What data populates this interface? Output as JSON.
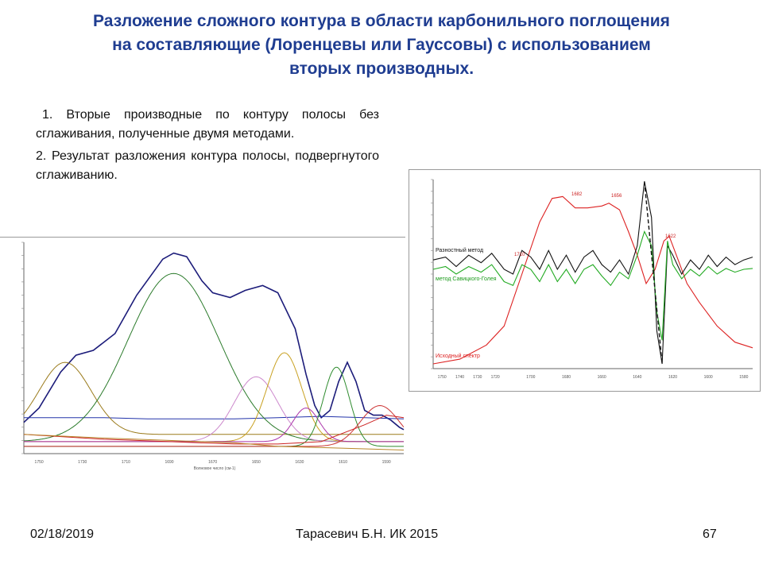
{
  "title": {
    "line1": "Разложение сложного контура в области карбонильного поглощения",
    "line2": "на составляющие  (Лоренцевы или Гауссовы) с использованием",
    "line3": "вторых производных."
  },
  "bullets": [
    "1. Вторые производные по контуру полосы без сглаживания, полученные двумя методами.",
    "2. Результат разложения контура полосы, подвергнутого сглаживанию."
  ],
  "footer": {
    "date": "02/18/2019",
    "author": "Тарасевич Б.Н.  ИК 2015",
    "page": "67"
  },
  "chart_data": [
    {
      "type": "line",
      "description_id": "deconvolution",
      "x_ticks": [
        "1750",
        "1730",
        "1710",
        "1690",
        "1670",
        "1650",
        "1630",
        "1610",
        "1590"
      ],
      "xlabel": "Волновое число (см-1)",
      "xlim": [
        1757,
        1582
      ],
      "ylim": [
        -0.1,
        0.78
      ],
      "colors": {
        "envelope": "#1c1c7a",
        "baseline": "#2233aa",
        "c1733": "#9a7a1a",
        "c1680": "#2a7a2a",
        "c1650": "#cc88cc",
        "c1641": "#c8a020",
        "c1628": "#aa33aa",
        "c1612": "#2e8b2e",
        "c1600": "#cc3333",
        "b1": "#cc2222",
        "b2": "#b8862b"
      },
      "series": [
        {
          "key": "envelope",
          "points": [
            [
              1757,
              0.03
            ],
            [
              1750,
              0.09
            ],
            [
              1740,
              0.24
            ],
            [
              1733,
              0.31
            ],
            [
              1725,
              0.33
            ],
            [
              1715,
              0.4
            ],
            [
              1705,
              0.56
            ],
            [
              1693,
              0.71
            ],
            [
              1688,
              0.735
            ],
            [
              1682,
              0.72
            ],
            [
              1675,
              0.62
            ],
            [
              1670,
              0.57
            ],
            [
              1662,
              0.55
            ],
            [
              1655,
              0.58
            ],
            [
              1647,
              0.6
            ],
            [
              1640,
              0.57
            ],
            [
              1632,
              0.42
            ],
            [
              1627,
              0.23
            ],
            [
              1623,
              0.1
            ],
            [
              1620,
              0.05
            ],
            [
              1616,
              0.08
            ],
            [
              1612,
              0.2
            ],
            [
              1608,
              0.28
            ],
            [
              1604,
              0.2
            ],
            [
              1600,
              0.08
            ],
            [
              1596,
              0.06
            ],
            [
              1592,
              0.06
            ],
            [
              1588,
              0.04
            ],
            [
              1584,
              0.01
            ],
            [
              1582,
              0.0
            ]
          ]
        },
        {
          "key": "baseline",
          "points": [
            [
              1757,
              0.05
            ],
            [
              1720,
              0.05
            ],
            [
              1700,
              0.045
            ],
            [
              1680,
              0.045
            ],
            [
              1660,
              0.045
            ],
            [
              1640,
              0.05
            ],
            [
              1620,
              0.055
            ],
            [
              1600,
              0.05
            ],
            [
              1582,
              0.045
            ]
          ]
        },
        {
          "key": "c1733",
          "peak": 1738,
          "height": 0.3,
          "width": 12,
          "base": -0.02
        },
        {
          "key": "c1680",
          "peak": 1688,
          "height": 0.7,
          "width": 21,
          "base": -0.05
        },
        {
          "key": "c1650",
          "peak": 1650,
          "height": 0.27,
          "width": 10,
          "base": -0.05
        },
        {
          "key": "c1641",
          "peak": 1637,
          "height": 0.37,
          "width": 8,
          "base": -0.05
        },
        {
          "key": "c1628",
          "peak": 1627,
          "height": 0.14,
          "width": 6,
          "base": -0.05
        },
        {
          "key": "c1612",
          "peak": 1613,
          "height": 0.33,
          "width": 6,
          "base": -0.07
        },
        {
          "key": "c1600",
          "peak": 1593,
          "height": 0.17,
          "width": 9,
          "base": -0.07
        },
        {
          "key": "b1",
          "points": [
            [
              1757,
              -0.02
            ],
            [
              1720,
              -0.04
            ],
            [
              1690,
              -0.05
            ],
            [
              1660,
              -0.06
            ],
            [
              1640,
              -0.06
            ],
            [
              1620,
              -0.05
            ],
            [
              1600,
              0.02
            ],
            [
              1590,
              0.06
            ],
            [
              1582,
              0.05
            ]
          ]
        },
        {
          "key": "b2",
          "points": [
            [
              1757,
              -0.02
            ],
            [
              1720,
              -0.035
            ],
            [
              1690,
              -0.045
            ],
            [
              1660,
              -0.055
            ],
            [
              1640,
              -0.07
            ],
            [
              1620,
              -0.075
            ],
            [
              1600,
              -0.08
            ],
            [
              1582,
              -0.085
            ]
          ]
        }
      ]
    },
    {
      "type": "line",
      "description_id": "second-derivatives",
      "x_ticks": [
        "1750",
        "1740",
        "1730",
        "1720",
        "1700",
        "1680",
        "1660",
        "1640",
        "1620",
        "1600",
        "1580"
      ],
      "xlim": [
        1755,
        1575
      ],
      "ylim": [
        -1,
        1
      ],
      "labels": {
        "raznost": "Разностный метод",
        "savitzky": "метод Савицкого-Голея",
        "iskhodny": "Исходный спектр",
        "p1682": "1682",
        "p1656": "1656",
        "p1710": "1710",
        "p1622": "1622"
      },
      "colors": {
        "raznost": "#111111",
        "savitzky": "#22aa22",
        "iskhodny": "#dd2222"
      },
      "series": [
        {
          "key": "iskhodny",
          "name": "Исходный спектр",
          "points": [
            [
              1755,
              -0.95
            ],
            [
              1740,
              -0.9
            ],
            [
              1725,
              -0.75
            ],
            [
              1715,
              -0.55
            ],
            [
              1705,
              0.0
            ],
            [
              1695,
              0.55
            ],
            [
              1688,
              0.8
            ],
            [
              1682,
              0.82
            ],
            [
              1675,
              0.7
            ],
            [
              1668,
              0.7
            ],
            [
              1660,
              0.72
            ],
            [
              1656,
              0.75
            ],
            [
              1650,
              0.68
            ],
            [
              1645,
              0.45
            ],
            [
              1640,
              0.2
            ],
            [
              1635,
              -0.1
            ],
            [
              1630,
              0.05
            ],
            [
              1625,
              0.35
            ],
            [
              1622,
              0.4
            ],
            [
              1618,
              0.2
            ],
            [
              1612,
              -0.1
            ],
            [
              1605,
              -0.3
            ],
            [
              1595,
              -0.55
            ],
            [
              1585,
              -0.72
            ],
            [
              1575,
              -0.78
            ]
          ]
        },
        {
          "key": "raznost",
          "name": "Разностный метод",
          "points": [
            [
              1755,
              0.15
            ],
            [
              1748,
              0.18
            ],
            [
              1742,
              0.08
            ],
            [
              1735,
              0.2
            ],
            [
              1728,
              0.12
            ],
            [
              1722,
              0.22
            ],
            [
              1715,
              0.05
            ],
            [
              1710,
              0.0
            ],
            [
              1705,
              0.25
            ],
            [
              1700,
              0.18
            ],
            [
              1695,
              0.05
            ],
            [
              1690,
              0.25
            ],
            [
              1685,
              0.05
            ],
            [
              1680,
              0.2
            ],
            [
              1675,
              0.02
            ],
            [
              1670,
              0.18
            ],
            [
              1665,
              0.25
            ],
            [
              1660,
              0.1
            ],
            [
              1655,
              0.02
            ],
            [
              1650,
              0.15
            ],
            [
              1645,
              0.0
            ],
            [
              1640,
              0.3
            ],
            [
              1636,
              0.98
            ],
            [
              1632,
              0.6
            ],
            [
              1629,
              -0.6
            ],
            [
              1626,
              -0.95
            ],
            [
              1623,
              0.3
            ],
            [
              1620,
              0.2
            ],
            [
              1615,
              0.0
            ],
            [
              1610,
              0.15
            ],
            [
              1605,
              0.05
            ],
            [
              1600,
              0.2
            ],
            [
              1595,
              0.08
            ],
            [
              1590,
              0.18
            ],
            [
              1585,
              0.1
            ],
            [
              1580,
              0.15
            ],
            [
              1575,
              0.18
            ]
          ]
        },
        {
          "key": "savitzky",
          "name": "метод Савицкого-Голея",
          "points": [
            [
              1755,
              0.05
            ],
            [
              1748,
              0.08
            ],
            [
              1742,
              0.0
            ],
            [
              1735,
              0.08
            ],
            [
              1728,
              0.02
            ],
            [
              1722,
              0.1
            ],
            [
              1715,
              -0.08
            ],
            [
              1710,
              -0.12
            ],
            [
              1705,
              0.1
            ],
            [
              1700,
              0.05
            ],
            [
              1695,
              -0.08
            ],
            [
              1690,
              0.1
            ],
            [
              1685,
              -0.08
            ],
            [
              1680,
              0.05
            ],
            [
              1675,
              -0.1
            ],
            [
              1670,
              0.05
            ],
            [
              1665,
              0.1
            ],
            [
              1660,
              -0.02
            ],
            [
              1655,
              -0.12
            ],
            [
              1650,
              0.02
            ],
            [
              1645,
              -0.05
            ],
            [
              1640,
              0.2
            ],
            [
              1636,
              0.45
            ],
            [
              1632,
              0.3
            ],
            [
              1629,
              -0.4
            ],
            [
              1626,
              -0.7
            ],
            [
              1623,
              0.35
            ],
            [
              1620,
              0.1
            ],
            [
              1615,
              -0.05
            ],
            [
              1610,
              0.05
            ],
            [
              1605,
              -0.02
            ],
            [
              1600,
              0.08
            ],
            [
              1595,
              0.0
            ],
            [
              1590,
              0.06
            ],
            [
              1585,
              0.02
            ],
            [
              1580,
              0.05
            ],
            [
              1575,
              0.06
            ]
          ]
        }
      ]
    }
  ]
}
